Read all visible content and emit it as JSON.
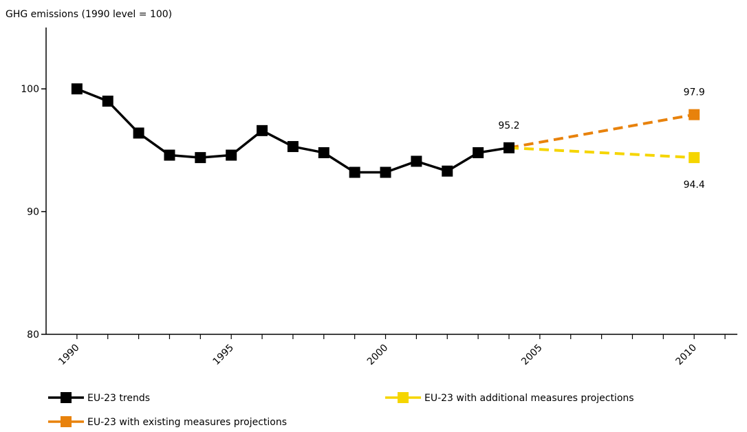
{
  "chart_data": {
    "type": "line",
    "title": "",
    "ylabel": "GHG emissions (1990 level = 100)",
    "xlabel": "",
    "xlim": [
      1989,
      2011.4
    ],
    "ylim": [
      80,
      105
    ],
    "y_ticks": [
      80,
      90,
      100
    ],
    "x_tick_labels": [
      1990,
      1995,
      2000,
      2005,
      2010
    ],
    "x_minor_ticks": [
      1990,
      1991,
      1992,
      1993,
      1994,
      1995,
      1996,
      1997,
      1998,
      1999,
      2000,
      2001,
      2002,
      2003,
      2004,
      2005,
      2006,
      2007,
      2008,
      2009,
      2010,
      2011
    ],
    "grid": false,
    "legend_position": "bottom",
    "series": [
      {
        "name": "EU-23 trends",
        "color": "#000000",
        "style": "solid",
        "x": [
          1990,
          1991,
          1992,
          1993,
          1994,
          1995,
          1996,
          1997,
          1998,
          1999,
          2000,
          2001,
          2002,
          2003,
          2004
        ],
        "values": [
          100.0,
          99.0,
          96.4,
          94.6,
          94.4,
          94.6,
          96.6,
          95.3,
          94.8,
          93.2,
          93.2,
          94.1,
          93.3,
          94.8,
          95.2
        ]
      },
      {
        "name": "EU-23 with additional measures projections",
        "color": "#f5d500",
        "style": "dashed",
        "x": [
          2004,
          2010
        ],
        "values": [
          95.2,
          94.4
        ]
      },
      {
        "name": "EU-23 with existing measures projections",
        "color": "#e8820c",
        "style": "dashed",
        "x": [
          2004,
          2010
        ],
        "values": [
          95.2,
          97.9
        ]
      }
    ],
    "annotations": [
      {
        "text": "95.2",
        "x": 2004,
        "y": 95.2
      },
      {
        "text": "97.9",
        "x": 2010,
        "y": 97.9
      },
      {
        "text": "94.4",
        "x": 2010,
        "y": 94.4
      }
    ]
  }
}
